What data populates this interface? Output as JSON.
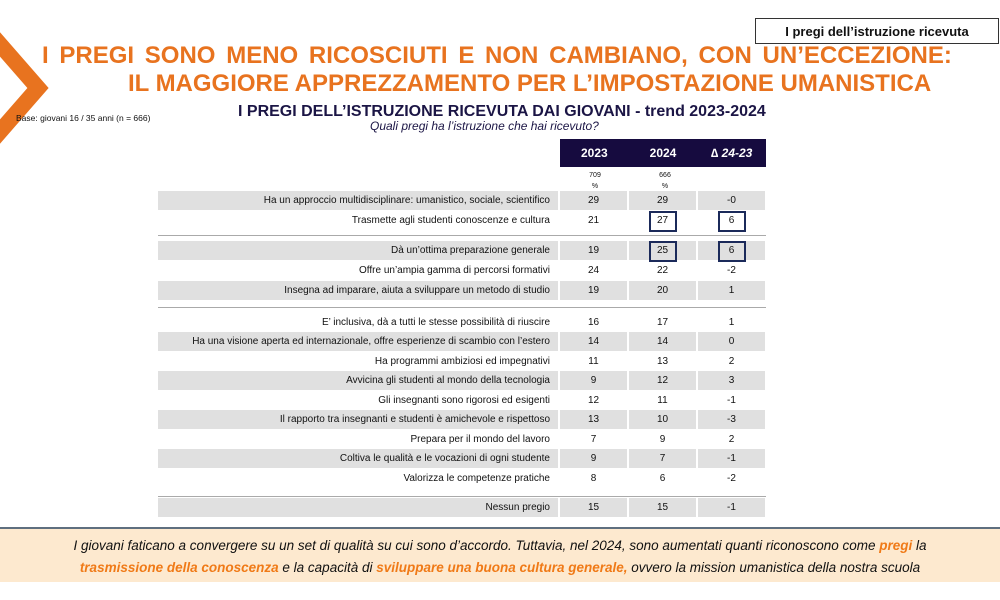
{
  "tag": "I pregi dell’istruzione ricevuta",
  "title_line1": [
    "I",
    "PREGI",
    "SONO",
    "MENO",
    "RICOSCIUTI",
    "E",
    "NON",
    "CAMBIANO,",
    "CON",
    "UN’ECCEZIONE:"
  ],
  "title_line2": "IL MAGGIORE APPREZZAMENTO PER L’IMPOSTAZIONE UMANISTICA",
  "base": "Base: giovani 16 / 35 anni (n = 666)",
  "subtitle": "I PREGI DELL’ISTRUZIONE RICEVUTA DAI GIOVANI - trend 2023-2024",
  "question": "Quali pregi ha l’istruzione che hai ricevuto?",
  "headers": [
    "2023",
    "2024",
    "∆ 24-23"
  ],
  "bases": [
    {
      "n": "709",
      "u": "%"
    },
    {
      "n": "666",
      "u": "%"
    }
  ],
  "rows": [
    {
      "label": "Ha un approccio multidisciplinare: umanistico, sociale, scientifico",
      "v": [
        "29",
        "29",
        "-0"
      ]
    },
    {
      "label": "Trasmette agli studenti conoscenze e cultura",
      "v": [
        "21",
        "27",
        "6"
      ]
    },
    {
      "label": "Dà un’ottima preparazione generale",
      "v": [
        "19",
        "25",
        "6"
      ]
    },
    {
      "label": "Offre un’ampia gamma di percorsi formativi",
      "v": [
        "24",
        "22",
        "-2"
      ]
    },
    {
      "label": "Insegna ad imparare, aiuta a sviluppare un metodo di studio",
      "v": [
        "19",
        "20",
        "1"
      ]
    },
    {
      "label": "E’ inclusiva, dà a tutti le stesse possibilità di riuscire",
      "v": [
        "16",
        "17",
        "1"
      ]
    },
    {
      "label": "Ha una visione aperta ed internazionale, offre esperienze di scambio con l’estero",
      "v": [
        "14",
        "14",
        "0"
      ]
    },
    {
      "label": "Ha programmi ambiziosi ed impegnativi",
      "v": [
        "11",
        "13",
        "2"
      ]
    },
    {
      "label": "Avvicina gli studenti al mondo della tecnologia",
      "v": [
        "9",
        "12",
        "3"
      ]
    },
    {
      "label": "Gli insegnanti sono rigorosi ed esigenti",
      "v": [
        "12",
        "11",
        "-1"
      ]
    },
    {
      "label": "Il rapporto tra insegnanti e studenti è amichevole e rispettoso",
      "v": [
        "13",
        "10",
        "-3"
      ]
    },
    {
      "label": "Prepara per il mondo del lavoro",
      "v": [
        "7",
        "9",
        "2"
      ]
    },
    {
      "label": "Coltiva le qualità e le vocazioni di ogni studente",
      "v": [
        "9",
        "7",
        "-1"
      ]
    },
    {
      "label": "Valorizza le competenze pratiche",
      "v": [
        "8",
        "6",
        "-2"
      ]
    },
    {
      "label": "Nessun pregio",
      "v": [
        "15",
        "15",
        "-1"
      ]
    }
  ],
  "note": {
    "p1": "I giovani faticano a convergere su un set di qualità su cui sono d’accordo. Tuttavia, nel 2024, sono aumentati  quanti riconoscono come ",
    "h1": "pregi",
    "p2": "  la ",
    "h2": "trasmissione della conoscenza",
    "p3": " e la capacità di ",
    "h3": "sviluppare una buona cultura generale,",
    "p4": " ovvero la mission umanistica della nostra scuola"
  },
  "colors": {
    "accent": "#e8731f",
    "header": "#160b3f"
  }
}
